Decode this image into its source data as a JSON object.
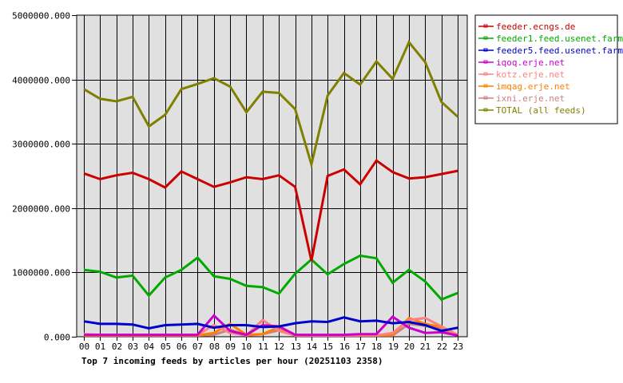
{
  "chart_data": {
    "type": "line",
    "title": "Top 7 incoming feeds by articles per hour (20251103 2358)",
    "xlabel": "",
    "ylabel": "",
    "ylim": [
      0,
      5000000
    ],
    "grid": true,
    "legend_position": "right",
    "y_ticks": [
      "0.000",
      "1000000.000",
      "2000000.000",
      "3000000.000",
      "4000000.000",
      "5000000.000"
    ],
    "categories": [
      "00",
      "01",
      "02",
      "03",
      "04",
      "05",
      "06",
      "07",
      "08",
      "09",
      "10",
      "11",
      "12",
      "13",
      "14",
      "15",
      "16",
      "17",
      "18",
      "19",
      "20",
      "21",
      "22",
      "23"
    ],
    "series": [
      {
        "name": "feeder.ecngs.de",
        "color": "#cc0000",
        "values": [
          2540000,
          2450000,
          2510000,
          2550000,
          2450000,
          2320000,
          2570000,
          2450000,
          2330000,
          2400000,
          2480000,
          2450000,
          2510000,
          2330000,
          1180000,
          2500000,
          2600000,
          2370000,
          2740000,
          2560000,
          2460000,
          2480000,
          2530000,
          2580000
        ]
      },
      {
        "name": "feeder1.feed.usenet.farm",
        "color": "#00aa00",
        "values": [
          1040000,
          1010000,
          920000,
          950000,
          640000,
          920000,
          1040000,
          1230000,
          940000,
          900000,
          790000,
          770000,
          670000,
          980000,
          1200000,
          970000,
          1130000,
          1260000,
          1220000,
          840000,
          1040000,
          860000,
          580000,
          680000
        ]
      },
      {
        "name": "feeder5.feed.usenet.farm",
        "color": "#0000cc",
        "values": [
          240000,
          200000,
          200000,
          190000,
          130000,
          180000,
          190000,
          200000,
          140000,
          180000,
          180000,
          150000,
          160000,
          210000,
          240000,
          230000,
          300000,
          240000,
          250000,
          210000,
          230000,
          180000,
          90000,
          140000
        ]
      },
      {
        "name": "iqoq.erje.net",
        "color": "#cc00cc",
        "values": [
          30000,
          30000,
          30000,
          30000,
          30000,
          30000,
          30000,
          30000,
          330000,
          90000,
          30000,
          180000,
          160000,
          30000,
          30000,
          30000,
          30000,
          40000,
          40000,
          310000,
          140000,
          60000,
          70000,
          20000
        ]
      },
      {
        "name": "kotz.erje.net",
        "color": "#ff8080",
        "values": [
          40000,
          30000,
          30000,
          30000,
          30000,
          30000,
          30000,
          30000,
          180000,
          60000,
          20000,
          260000,
          90000,
          20000,
          20000,
          20000,
          20000,
          20000,
          20000,
          60000,
          260000,
          290000,
          160000,
          30000
        ]
      },
      {
        "name": "imqag.erje.net",
        "color": "#ff7f00",
        "values": [
          20000,
          20000,
          20000,
          20000,
          20000,
          20000,
          20000,
          20000,
          60000,
          200000,
          30000,
          40000,
          150000,
          20000,
          20000,
          20000,
          20000,
          20000,
          20000,
          30000,
          290000,
          200000,
          150000,
          20000
        ]
      },
      {
        "name": "ixni.erje.net",
        "color": "#cc8080",
        "values": [
          20000,
          20000,
          20000,
          20000,
          20000,
          20000,
          20000,
          20000,
          30000,
          110000,
          20000,
          40000,
          100000,
          20000,
          20000,
          20000,
          20000,
          20000,
          20000,
          20000,
          200000,
          170000,
          120000,
          20000
        ]
      },
      {
        "name": "TOTAL (all feeds)",
        "color": "#808000",
        "values": [
          3850000,
          3700000,
          3660000,
          3730000,
          3270000,
          3450000,
          3850000,
          3930000,
          4020000,
          3890000,
          3490000,
          3810000,
          3790000,
          3540000,
          2680000,
          3750000,
          4100000,
          3920000,
          4280000,
          4010000,
          4580000,
          4270000,
          3650000,
          3420000
        ]
      }
    ]
  }
}
